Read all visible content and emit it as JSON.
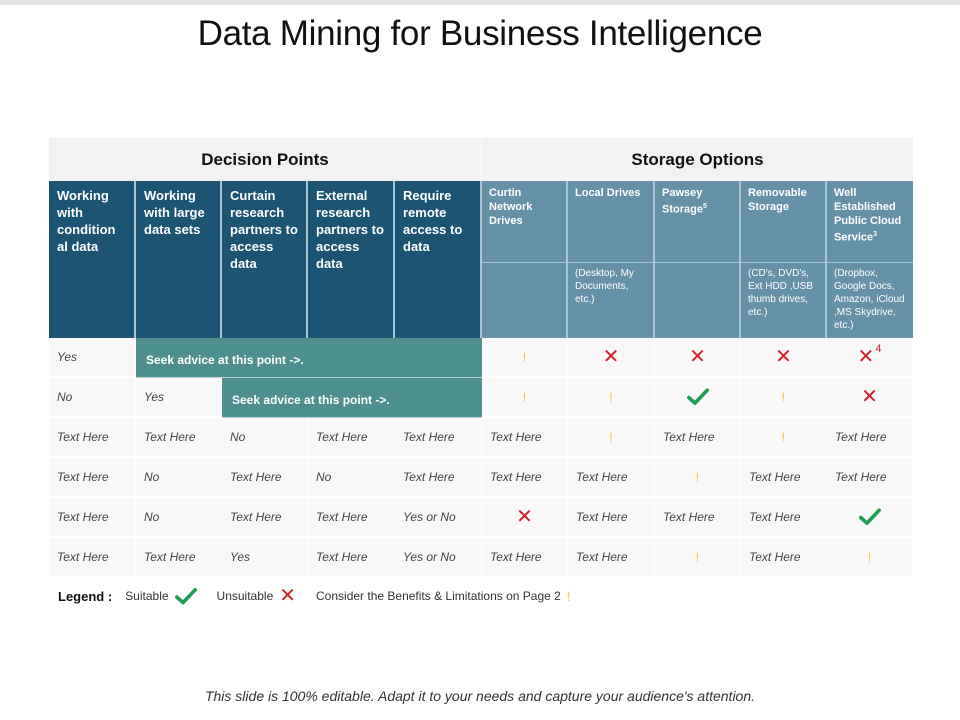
{
  "slide": {
    "title": "Data Mining for Business Intelligence",
    "footer": "This slide is 100% editable.  Adapt it to your needs and capture your audience's attention."
  },
  "table": {
    "groups": {
      "decision_points": "Decision Points",
      "storage_options": "Storage Options"
    },
    "decision_headers": [
      "Working with condition al data",
      "Working with large data sets",
      "Curtain research partners to access data",
      "External research partners to access data",
      "Require remote access to data"
    ],
    "storage_headers": [
      {
        "label": "Curtin Network Drives",
        "sup": "",
        "detail": ""
      },
      {
        "label": "Local Drives",
        "sup": "",
        "detail": "(Desktop, My Documents, etc.)"
      },
      {
        "label": "Pawsey Storage",
        "sup": "5",
        "detail": ""
      },
      {
        "label": "Removable Storage",
        "sup": "",
        "detail": "(CD's, DVD's, Ext HDD ,USB thumb drives, etc.)"
      },
      {
        "label": "Well Established Public Cloud Service",
        "sup": "3",
        "detail": "(Dropbox, Google Docs, Amazon, iCloud ,MS Skydrive, etc.)"
      }
    ],
    "advice_text": "Seek advice at this point ->.",
    "rows": [
      {
        "decision": [
          "Yes"
        ],
        "advice_span": 4,
        "storage": [
          "consider",
          "unsuitable",
          "unsuitable",
          "unsuitable",
          "unsuitable"
        ],
        "storage_notes": [
          "",
          "",
          "",
          "",
          "4"
        ]
      },
      {
        "decision": [
          "No",
          "Yes"
        ],
        "advice_span": 3,
        "storage": [
          "consider",
          "consider",
          "suitable",
          "consider",
          "unsuitable"
        ],
        "storage_notes": [
          "",
          "",
          "",
          "",
          ""
        ]
      },
      {
        "decision": [
          "Text Here",
          "Text Here",
          "No",
          "Text Here",
          "Text Here"
        ],
        "storage": [
          "Text Here",
          "consider",
          "Text Here",
          "consider",
          "Text Here"
        ]
      },
      {
        "decision": [
          "Text Here",
          "No",
          "Text Here",
          "No",
          "Text Here"
        ],
        "storage": [
          "Text Here",
          "Text Here",
          "consider",
          "Text Here",
          "Text Here"
        ]
      },
      {
        "decision": [
          "Text Here",
          "No",
          "Text Here",
          "Text Here",
          "Yes or No"
        ],
        "storage": [
          "unsuitable",
          "Text Here",
          "Text Here",
          "Text Here",
          "suitable"
        ]
      },
      {
        "decision": [
          "Text Here",
          "Text Here",
          "Yes",
          "Text Here",
          "Yes or No"
        ],
        "storage": [
          "Text Here",
          "Text Here",
          "consider",
          "Text Here",
          "consider"
        ]
      }
    ]
  },
  "legend": {
    "label": "Legend :",
    "suitable": "Suitable",
    "unsuitable": "Unsuitable",
    "consider": "Consider  the Benefits & Limitations on Page 2"
  },
  "icons": {
    "suitable": "check-icon",
    "unsuitable": "x-icon",
    "consider": "exclamation-icon"
  },
  "colors": {
    "decision_header": "#1b5573",
    "storage_header": "#6591a9",
    "advice_bar": "#4e9090",
    "suitable": "#1e9e55",
    "unsuitable": "#d0202a",
    "consider": "#f2c94c",
    "group_header_bg": "#f2f2f2",
    "body_cell_bg": "#f8f8f8"
  }
}
